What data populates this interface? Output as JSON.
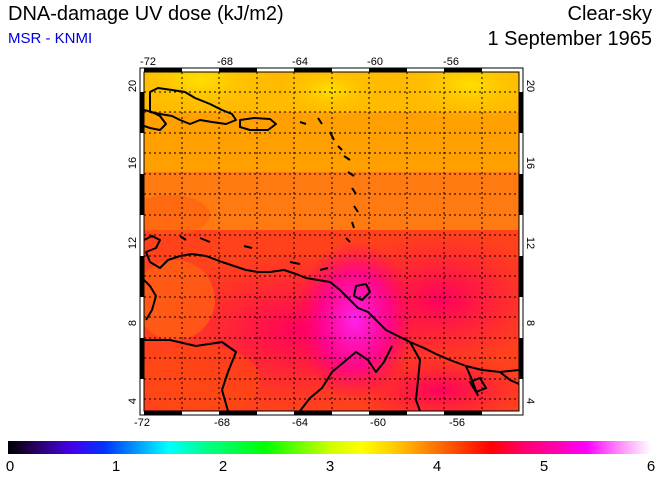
{
  "header": {
    "title": "DNA-damage UV dose (kJ/m2)",
    "source": "MSR - KNMI",
    "condition": "Clear-sky",
    "date": "1 September 1965"
  },
  "map": {
    "lon_ticks": [
      "-72",
      "-68",
      "-64",
      "-60",
      "-56"
    ],
    "lat_ticks": [
      "20",
      "16",
      "12",
      "8",
      "4"
    ],
    "lon_range": [
      -72,
      -52
    ],
    "lat_range": [
      4,
      20.5
    ],
    "grid": true
  },
  "colorbar": {
    "labels": [
      "0",
      "1",
      "2",
      "3",
      "4",
      "5",
      "6"
    ],
    "range": [
      0,
      6
    ]
  }
}
